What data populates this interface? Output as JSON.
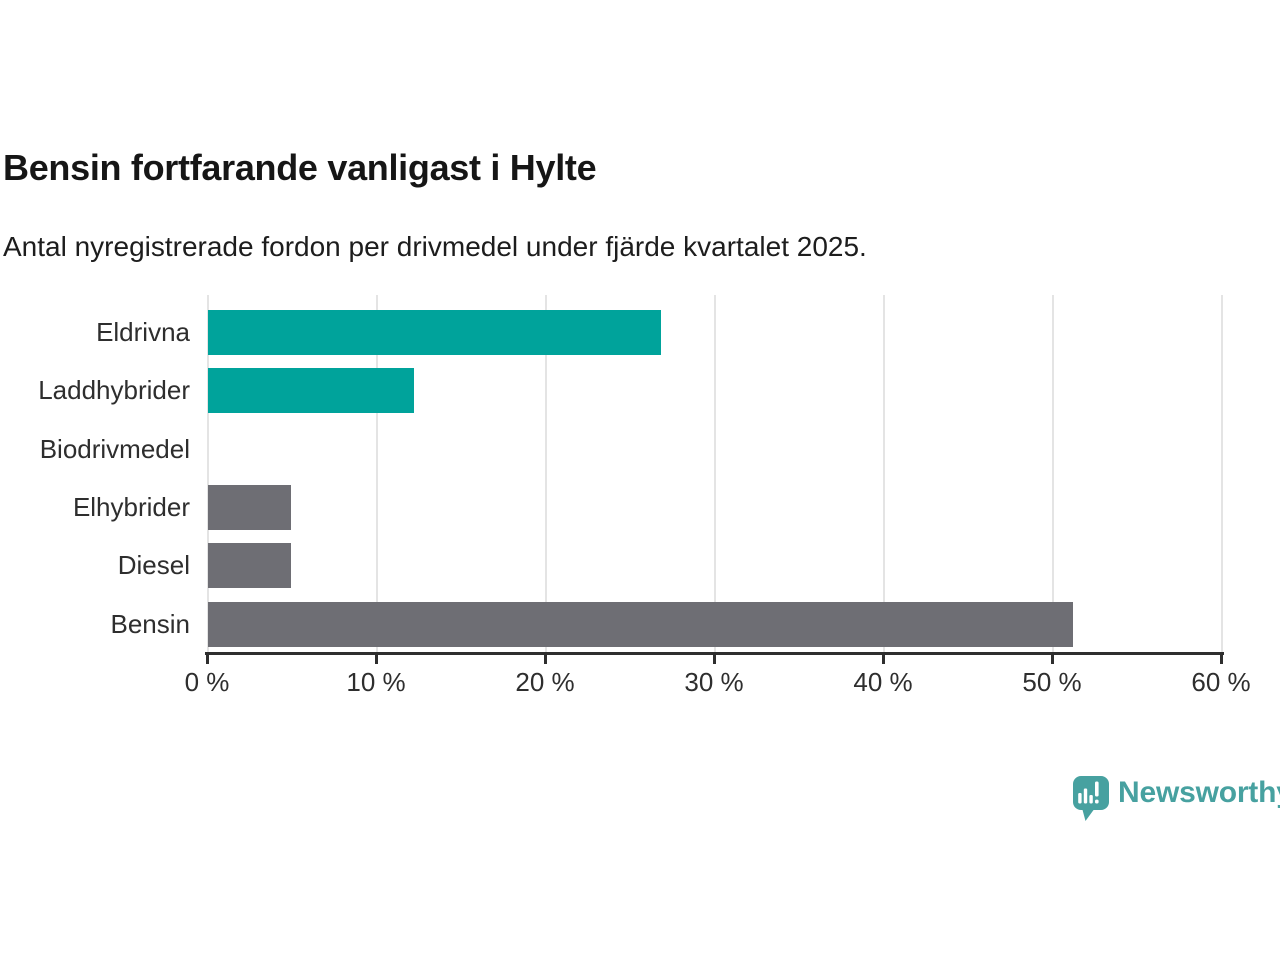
{
  "header": {
    "title": "Bensin fortfarande vanligast i Hylte",
    "subtitle": "Antal nyregistrerade fordon per drivmedel under fjärde kvartalet 2025."
  },
  "chart_data": {
    "type": "bar",
    "orientation": "horizontal",
    "title": "Bensin fortfarande vanligast i Hylte",
    "subtitle": "Antal nyregistrerade fordon per drivmedel under fjärde kvartalet 2025.",
    "categories": [
      "Eldrivna",
      "Laddhybrider",
      "Biodrivmedel",
      "Elhybrider",
      "Diesel",
      "Bensin"
    ],
    "values": [
      26.8,
      12.2,
      0,
      4.9,
      4.9,
      51.2
    ],
    "unit": "%",
    "bar_colors": [
      "#00a39b",
      "#00a39b",
      "#6e6e74",
      "#6e6e74",
      "#6e6e74",
      "#6e6e74"
    ],
    "x_tick_labels": [
      "0 %",
      "10 %",
      "20 %",
      "30 %",
      "40 %",
      "50 %",
      "60 %"
    ],
    "x_tick_values": [
      0,
      10,
      20,
      30,
      40,
      50,
      60
    ],
    "xlim": [
      0,
      60
    ],
    "xlabel": "",
    "ylabel": "",
    "grid": "vertical",
    "legend": "none"
  },
  "colors": {
    "teal": "#00a39b",
    "gray": "#6e6e74",
    "axis": "#2e2e2e",
    "gridline": "#e4e4e4",
    "background": "#ffffff",
    "brand_teal": "#47a1a0"
  },
  "brand": {
    "name": "Newsworthy"
  }
}
